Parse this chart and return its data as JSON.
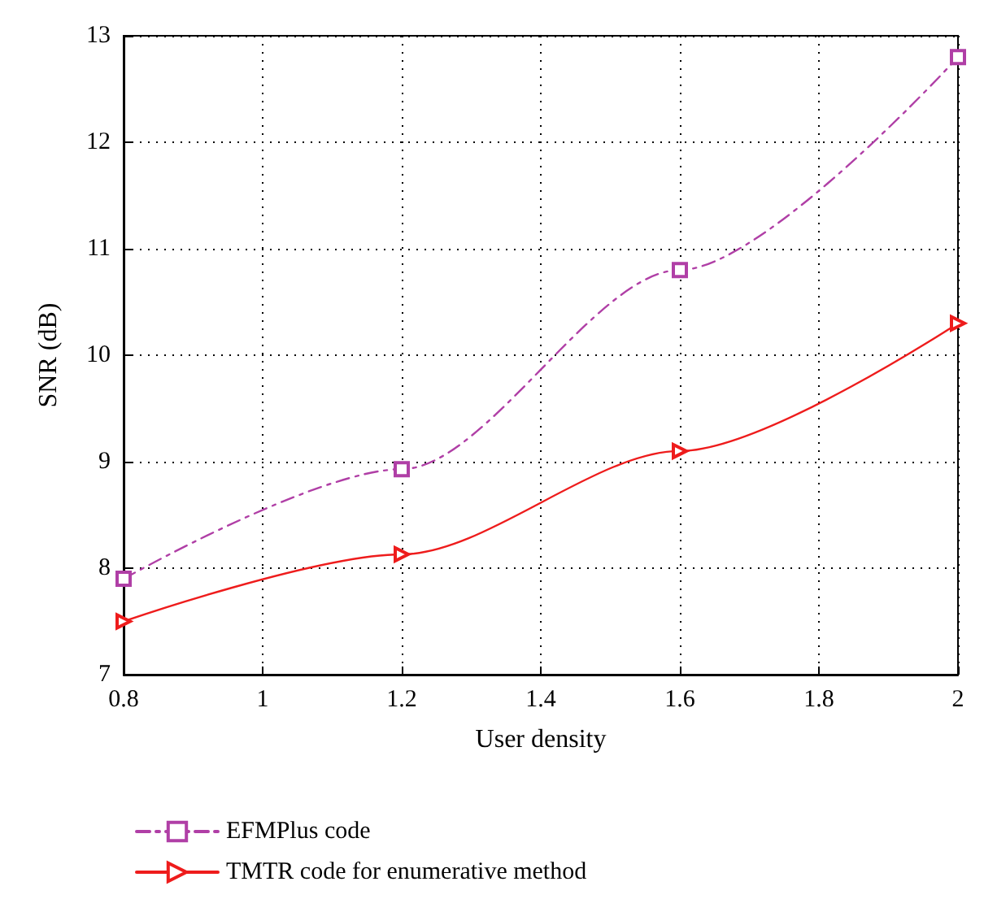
{
  "chart_data": {
    "type": "line",
    "xlabel": "User density",
    "ylabel": "SNR (dB)",
    "x": [
      0.8,
      1.2,
      1.6,
      2.0
    ],
    "series": [
      {
        "name": "EFMPlus code",
        "color": "#b03fa6",
        "values": [
          7.9,
          8.93,
          10.8,
          12.8
        ],
        "marker": "square",
        "line_style": "dashed"
      },
      {
        "name": "TMTR code for enumerative method",
        "color": "#ee1c1c",
        "values": [
          7.5,
          8.13,
          9.1,
          10.3
        ],
        "marker": "triangle",
        "line_style": "solid"
      }
    ],
    "xlim": [
      0.8,
      2
    ],
    "xticks": [
      0.8,
      1,
      1.2,
      1.4,
      1.6,
      1.8,
      2
    ],
    "ylim": [
      7,
      13
    ],
    "yticks": [
      7,
      8,
      9,
      10,
      11,
      12,
      13
    ],
    "grid": true,
    "legend": "bottom left"
  }
}
